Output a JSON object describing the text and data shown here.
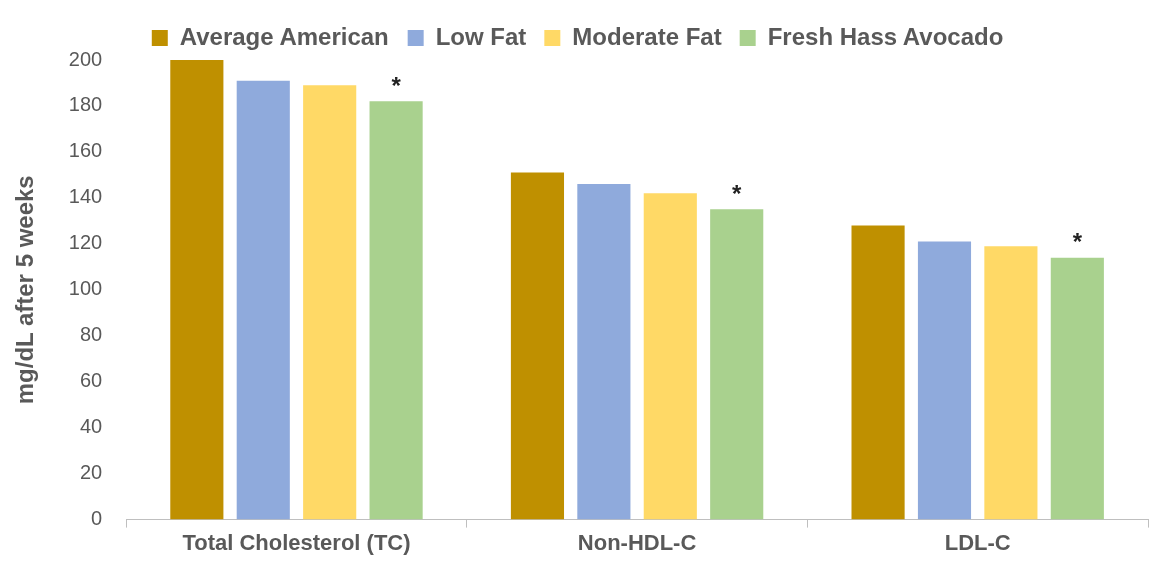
{
  "chart_data": {
    "type": "bar",
    "ylabel": "mg/dL after 5 weeks",
    "categories": [
      "Total Cholesterol (TC)",
      "Non-HDL-C",
      "LDL-C"
    ],
    "series": [
      {
        "name": "Average American",
        "color": "#bf9000",
        "values": [
          200,
          151,
          128
        ]
      },
      {
        "name": "Low Fat",
        "color": "#8faadc",
        "values": [
          191,
          146,
          121
        ]
      },
      {
        "name": "Moderate Fat",
        "color": "#ffd966",
        "values": [
          189,
          142,
          119
        ]
      },
      {
        "name": "Fresh Hass Avocado",
        "color": "#a9d18e",
        "values": [
          182,
          135,
          114
        ],
        "value_labels": [
          "*",
          "*",
          "*"
        ]
      }
    ],
    "ylim": [
      0,
      200
    ],
    "yticks": [
      0,
      20,
      40,
      60,
      80,
      100,
      120,
      140,
      160,
      180,
      200
    ],
    "grid": false,
    "legend": "top"
  }
}
